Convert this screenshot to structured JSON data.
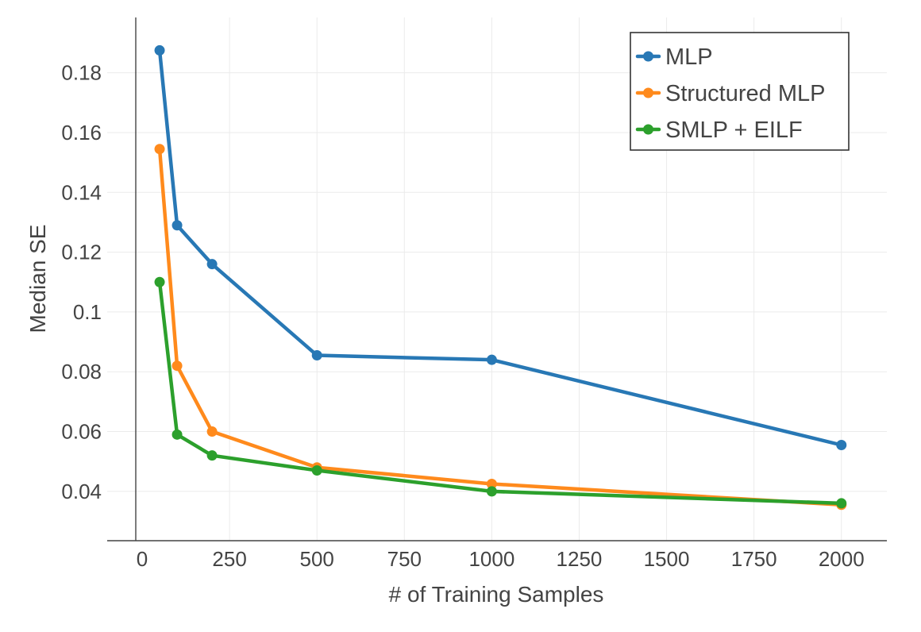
{
  "chart_data": {
    "type": "line",
    "title": "",
    "xlabel": "# of Training Samples",
    "ylabel": "Median SE",
    "xlim": [
      -100,
      2130
    ],
    "ylim": [
      0.0235,
      0.1985
    ],
    "xticks": [
      0,
      250,
      500,
      750,
      1000,
      1250,
      1500,
      1750,
      2000
    ],
    "xtick_labels": [
      "0",
      "250",
      "500",
      "750",
      "1000",
      "1250",
      "1500",
      "1750",
      "2000"
    ],
    "yticks": [
      0.04,
      0.06,
      0.08,
      0.1,
      0.12,
      0.14,
      0.16,
      0.18
    ],
    "ytick_labels": [
      "0.04",
      "0.06",
      "0.08",
      "0.1",
      "0.12",
      "0.14",
      "0.16",
      "0.18"
    ],
    "grid": true,
    "legend_position": "top-right",
    "x": [
      50,
      100,
      200,
      500,
      1000,
      2000
    ],
    "series": [
      {
        "name": "MLP",
        "color": "#2878b5",
        "values": [
          0.1875,
          0.129,
          0.116,
          0.0855,
          0.084,
          0.0555
        ]
      },
      {
        "name": "Structured MLP",
        "color": "#ff8a1c",
        "values": [
          0.1545,
          0.082,
          0.06,
          0.048,
          0.0425,
          0.0355
        ]
      },
      {
        "name": "SMLP + EILF",
        "color": "#2ca02c",
        "values": [
          0.11,
          0.059,
          0.052,
          0.047,
          0.04,
          0.036
        ]
      }
    ]
  }
}
